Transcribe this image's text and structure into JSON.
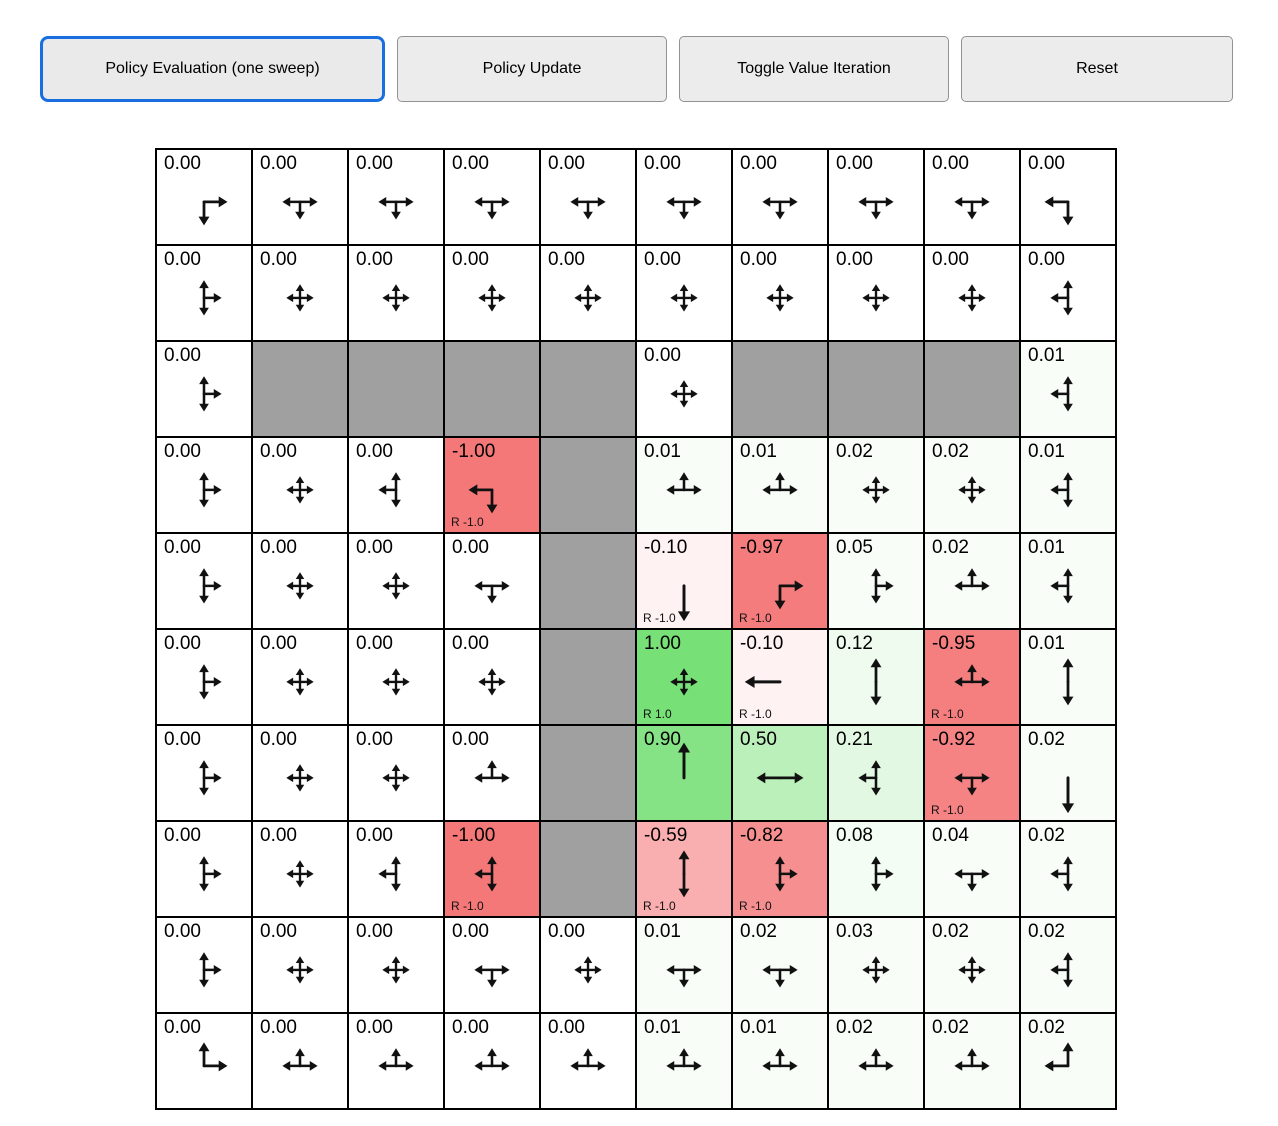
{
  "toolbar": {
    "active_border_color": "#1a6fe0",
    "buttons": [
      {
        "id": "policy-evaluation",
        "label": "Policy Evaluation (one sweep)",
        "active": true
      },
      {
        "id": "policy-update",
        "label": "Policy Update",
        "active": false
      },
      {
        "id": "toggle-value-iteration",
        "label": "Toggle Value Iteration",
        "active": false
      },
      {
        "id": "reset",
        "label": "Reset",
        "active": false
      }
    ]
  },
  "grid": {
    "rows": 10,
    "cols": 10,
    "cell_size": 96,
    "wall_color": "#a0a0a0",
    "positive_color": "#77e077",
    "negative_color": "#f47878",
    "line_color": "#000000",
    "cells": [
      [
        {
          "v": "0.00",
          "a": [
            "right",
            "down"
          ]
        },
        {
          "v": "0.00",
          "a": [
            "left",
            "right",
            "down"
          ]
        },
        {
          "v": "0.00",
          "a": [
            "left",
            "right",
            "down"
          ]
        },
        {
          "v": "0.00",
          "a": [
            "left",
            "right",
            "down"
          ]
        },
        {
          "v": "0.00",
          "a": [
            "left",
            "right",
            "down"
          ]
        },
        {
          "v": "0.00",
          "a": [
            "left",
            "right",
            "down"
          ]
        },
        {
          "v": "0.00",
          "a": [
            "left",
            "right",
            "down"
          ]
        },
        {
          "v": "0.00",
          "a": [
            "left",
            "right",
            "down"
          ]
        },
        {
          "v": "0.00",
          "a": [
            "left",
            "right",
            "down"
          ]
        },
        {
          "v": "0.00",
          "a": [
            "left",
            "down"
          ]
        }
      ],
      [
        {
          "v": "0.00",
          "a": [
            "up",
            "down",
            "right"
          ]
        },
        {
          "v": "0.00",
          "a": [
            "up",
            "down",
            "left",
            "right"
          ]
        },
        {
          "v": "0.00",
          "a": [
            "up",
            "down",
            "left",
            "right"
          ]
        },
        {
          "v": "0.00",
          "a": [
            "up",
            "down",
            "left",
            "right"
          ]
        },
        {
          "v": "0.00",
          "a": [
            "up",
            "down",
            "left",
            "right"
          ]
        },
        {
          "v": "0.00",
          "a": [
            "up",
            "down",
            "left",
            "right"
          ]
        },
        {
          "v": "0.00",
          "a": [
            "up",
            "down",
            "left",
            "right"
          ]
        },
        {
          "v": "0.00",
          "a": [
            "up",
            "down",
            "left",
            "right"
          ]
        },
        {
          "v": "0.00",
          "a": [
            "up",
            "down",
            "left",
            "right"
          ]
        },
        {
          "v": "0.00",
          "a": [
            "up",
            "down",
            "left"
          ]
        }
      ],
      [
        {
          "v": "0.00",
          "a": [
            "up",
            "down",
            "right"
          ]
        },
        {
          "w": true
        },
        {
          "w": true
        },
        {
          "w": true
        },
        {
          "w": true
        },
        {
          "v": "0.00",
          "a": [
            "up",
            "down",
            "left",
            "right"
          ]
        },
        {
          "w": true
        },
        {
          "w": true
        },
        {
          "w": true
        },
        {
          "v": "0.01",
          "a": [
            "up",
            "down",
            "left"
          ]
        }
      ],
      [
        {
          "v": "0.00",
          "a": [
            "up",
            "down",
            "right"
          ]
        },
        {
          "v": "0.00",
          "a": [
            "up",
            "down",
            "left",
            "right"
          ]
        },
        {
          "v": "0.00",
          "a": [
            "up",
            "down",
            "left"
          ]
        },
        {
          "v": "-1.00",
          "a": [
            "left",
            "down"
          ],
          "r": "R -1.0"
        },
        {
          "w": true
        },
        {
          "v": "0.01",
          "a": [
            "up",
            "left",
            "right"
          ]
        },
        {
          "v": "0.01",
          "a": [
            "up",
            "left",
            "right"
          ]
        },
        {
          "v": "0.02",
          "a": [
            "up",
            "down",
            "left",
            "right"
          ]
        },
        {
          "v": "0.02",
          "a": [
            "up",
            "down",
            "left",
            "right"
          ]
        },
        {
          "v": "0.01",
          "a": [
            "up",
            "down",
            "left"
          ]
        }
      ],
      [
        {
          "v": "0.00",
          "a": [
            "up",
            "down",
            "right"
          ]
        },
        {
          "v": "0.00",
          "a": [
            "up",
            "down",
            "left",
            "right"
          ]
        },
        {
          "v": "0.00",
          "a": [
            "up",
            "down",
            "left",
            "right"
          ]
        },
        {
          "v": "0.00",
          "a": [
            "left",
            "right",
            "down"
          ]
        },
        {
          "w": true
        },
        {
          "v": "-0.10",
          "a": [
            "down"
          ],
          "r": "R -1.0"
        },
        {
          "v": "-0.97",
          "a": [
            "right",
            "down"
          ],
          "r": "R -1.0"
        },
        {
          "v": "0.05",
          "a": [
            "up",
            "down",
            "right"
          ]
        },
        {
          "v": "0.02",
          "a": [
            "up",
            "left",
            "right"
          ]
        },
        {
          "v": "0.01",
          "a": [
            "up",
            "down",
            "left"
          ]
        }
      ],
      [
        {
          "v": "0.00",
          "a": [
            "up",
            "down",
            "right"
          ]
        },
        {
          "v": "0.00",
          "a": [
            "up",
            "down",
            "left",
            "right"
          ]
        },
        {
          "v": "0.00",
          "a": [
            "up",
            "down",
            "left",
            "right"
          ]
        },
        {
          "v": "0.00",
          "a": [
            "up",
            "down",
            "left",
            "right"
          ]
        },
        {
          "w": true
        },
        {
          "v": "1.00",
          "a": [
            "up",
            "down",
            "left",
            "right"
          ],
          "r": "R 1.0"
        },
        {
          "v": "-0.10",
          "a": [
            "left"
          ],
          "r": "R -1.0"
        },
        {
          "v": "0.12",
          "a": [
            "up",
            "down"
          ]
        },
        {
          "v": "-0.95",
          "a": [
            "up",
            "left",
            "right"
          ],
          "r": "R -1.0"
        },
        {
          "v": "0.01",
          "a": [
            "up",
            "down"
          ]
        }
      ],
      [
        {
          "v": "0.00",
          "a": [
            "up",
            "down",
            "right"
          ]
        },
        {
          "v": "0.00",
          "a": [
            "up",
            "down",
            "left",
            "right"
          ]
        },
        {
          "v": "0.00",
          "a": [
            "up",
            "down",
            "left",
            "right"
          ]
        },
        {
          "v": "0.00",
          "a": [
            "up",
            "left",
            "right"
          ]
        },
        {
          "w": true
        },
        {
          "v": "0.90",
          "a": [
            "up"
          ]
        },
        {
          "v": "0.50",
          "a": [
            "left",
            "right"
          ]
        },
        {
          "v": "0.21",
          "a": [
            "up",
            "down",
            "left"
          ]
        },
        {
          "v": "-0.92",
          "a": [
            "left",
            "right",
            "down"
          ],
          "r": "R -1.0"
        },
        {
          "v": "0.02",
          "a": [
            "down"
          ]
        }
      ],
      [
        {
          "v": "0.00",
          "a": [
            "up",
            "down",
            "right"
          ]
        },
        {
          "v": "0.00",
          "a": [
            "up",
            "down",
            "left",
            "right"
          ]
        },
        {
          "v": "0.00",
          "a": [
            "up",
            "down",
            "left"
          ]
        },
        {
          "v": "-1.00",
          "a": [
            "up",
            "down",
            "left"
          ],
          "r": "R -1.0"
        },
        {
          "w": true
        },
        {
          "v": "-0.59",
          "a": [
            "up",
            "down"
          ],
          "r": "R -1.0"
        },
        {
          "v": "-0.82",
          "a": [
            "up",
            "down",
            "right"
          ],
          "r": "R -1.0"
        },
        {
          "v": "0.08",
          "a": [
            "up",
            "down",
            "right"
          ]
        },
        {
          "v": "0.04",
          "a": [
            "left",
            "right",
            "down"
          ]
        },
        {
          "v": "0.02",
          "a": [
            "up",
            "down",
            "left"
          ]
        }
      ],
      [
        {
          "v": "0.00",
          "a": [
            "up",
            "down",
            "right"
          ]
        },
        {
          "v": "0.00",
          "a": [
            "up",
            "down",
            "left",
            "right"
          ]
        },
        {
          "v": "0.00",
          "a": [
            "up",
            "down",
            "left",
            "right"
          ]
        },
        {
          "v": "0.00",
          "a": [
            "left",
            "right",
            "down"
          ]
        },
        {
          "v": "0.00",
          "a": [
            "up",
            "down",
            "left",
            "right"
          ]
        },
        {
          "v": "0.01",
          "a": [
            "left",
            "right",
            "down"
          ]
        },
        {
          "v": "0.02",
          "a": [
            "left",
            "right",
            "down"
          ]
        },
        {
          "v": "0.03",
          "a": [
            "up",
            "down",
            "left",
            "right"
          ]
        },
        {
          "v": "0.02",
          "a": [
            "up",
            "down",
            "left",
            "right"
          ]
        },
        {
          "v": "0.02",
          "a": [
            "up",
            "down",
            "left"
          ]
        }
      ],
      [
        {
          "v": "0.00",
          "a": [
            "up",
            "right"
          ]
        },
        {
          "v": "0.00",
          "a": [
            "up",
            "left",
            "right"
          ]
        },
        {
          "v": "0.00",
          "a": [
            "up",
            "left",
            "right"
          ]
        },
        {
          "v": "0.00",
          "a": [
            "up",
            "left",
            "right"
          ]
        },
        {
          "v": "0.00",
          "a": [
            "up",
            "left",
            "right"
          ]
        },
        {
          "v": "0.01",
          "a": [
            "up",
            "left",
            "right"
          ]
        },
        {
          "v": "0.01",
          "a": [
            "up",
            "left",
            "right"
          ]
        },
        {
          "v": "0.02",
          "a": [
            "up",
            "left",
            "right"
          ]
        },
        {
          "v": "0.02",
          "a": [
            "up",
            "left",
            "right"
          ]
        },
        {
          "v": "0.02",
          "a": [
            "up",
            "left"
          ]
        }
      ]
    ]
  }
}
